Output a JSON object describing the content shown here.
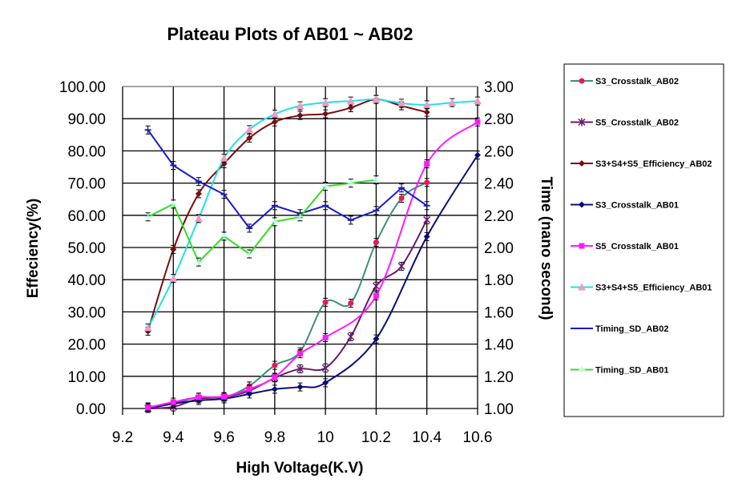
{
  "chart_data": {
    "type": "line",
    "title": "Plateau Plots of AB01 ~ AB02",
    "xlabel": "High Voltage(K.V)",
    "ylabel": "Effeciency(%)",
    "y2label": "Time (nano second)",
    "xlim": [
      9.2,
      10.6
    ],
    "ylim": [
      0,
      100
    ],
    "y2lim": [
      1.0,
      3.0
    ],
    "xticks": [
      "9.2",
      "9.4",
      "9.6",
      "9.8",
      "10",
      "10.2",
      "10.4",
      "10.6"
    ],
    "yticks": [
      "0.00",
      "10.00",
      "20.00",
      "30.00",
      "40.00",
      "50.00",
      "60.00",
      "70.00",
      "80.00",
      "90.00",
      "100.00"
    ],
    "y2ticks": [
      "1.00",
      "1.20",
      "1.40",
      "1.60",
      "1.80",
      "2.00",
      "2.20",
      "2.40",
      "2.60",
      "2.80",
      "3.00"
    ],
    "grid": true,
    "legend_position": "right",
    "x": [
      9.3,
      9.4,
      9.5,
      9.6,
      9.7,
      9.8,
      9.9,
      10.0,
      10.1,
      10.2,
      10.3,
      10.4,
      10.5,
      10.6
    ],
    "series": [
      {
        "name": "S3_Crosstalk_AB02",
        "axis": "left",
        "color": "#3f8f7a",
        "marker_color": "#e8185a",
        "marker": "dot",
        "smooth": true,
        "values": [
          0.5,
          1.5,
          3.5,
          3.5,
          7,
          13.4,
          17.6,
          33,
          32.7,
          51.6,
          65.3,
          70.2,
          null,
          null
        ]
      },
      {
        "name": "S5_Crosstalk_AB02",
        "axis": "left",
        "color": "#6a1a6a",
        "marker_color": "#6a1a6a",
        "marker": "star",
        "smooth": true,
        "values": [
          0,
          0.5,
          3,
          3.5,
          5.5,
          9.5,
          12.3,
          12.6,
          22.3,
          38,
          44.2,
          58.6,
          null,
          null
        ]
      },
      {
        "name": "S3+S4+S5_Efficiency_AB02",
        "axis": "left",
        "color": "#7a0c0c",
        "marker_color": "#7a0c0c",
        "marker": "diamond",
        "smooth": true,
        "values": [
          24,
          49.4,
          66.7,
          76,
          84,
          89,
          91,
          91.5,
          93.4,
          96,
          94,
          92,
          null,
          null
        ]
      },
      {
        "name": "S3_Crosstalk_AB01",
        "axis": "left",
        "color": "#0c0c7a",
        "marker_color": "#0c0c7a",
        "marker": "diamond",
        "smooth": true,
        "values": [
          0,
          1.5,
          2.5,
          3,
          4.5,
          6,
          6.7,
          8,
          null,
          21.6,
          null,
          53.4,
          null,
          78.7
        ]
      },
      {
        "name": "S5_Crosstalk_AB01",
        "axis": "left",
        "color": "#ff1aff",
        "marker_color": "#ff1aff",
        "marker": "square",
        "smooth": true,
        "values": [
          0.3,
          2,
          3.5,
          3.7,
          6,
          9.7,
          17,
          22,
          null,
          35,
          null,
          76,
          null,
          89
        ]
      },
      {
        "name": "S3+S4+S5_Efficiency_AB01",
        "axis": "left",
        "color": "#22e0e8",
        "marker_color": "#f09ac0",
        "marker": "triangle",
        "smooth": true,
        "values": [
          25,
          40.4,
          59,
          77.7,
          86.6,
          91.4,
          94,
          95,
          95.5,
          96,
          94.8,
          94.3,
          95,
          95.5
        ]
      },
      {
        "name": "Timing_SD_AB02",
        "axis": "right",
        "color": "#1a1ad0",
        "marker_color": "#1a1ad0",
        "marker": "dash",
        "smooth": false,
        "values": [
          2.73,
          2.51,
          2.41,
          2.33,
          2.12,
          2.26,
          2.21,
          2.26,
          2.17,
          2.23,
          2.37,
          2.26,
          null,
          null
        ]
      },
      {
        "name": "Timing_SD_AB01",
        "axis": "right",
        "color": "#33dd22",
        "marker_color": "#aaffee",
        "marker": "cross",
        "smooth": false,
        "values": [
          2.19,
          2.27,
          1.91,
          2.07,
          1.96,
          2.16,
          2.19,
          2.38,
          2.4,
          2.42,
          null,
          null,
          null,
          null
        ]
      }
    ]
  }
}
